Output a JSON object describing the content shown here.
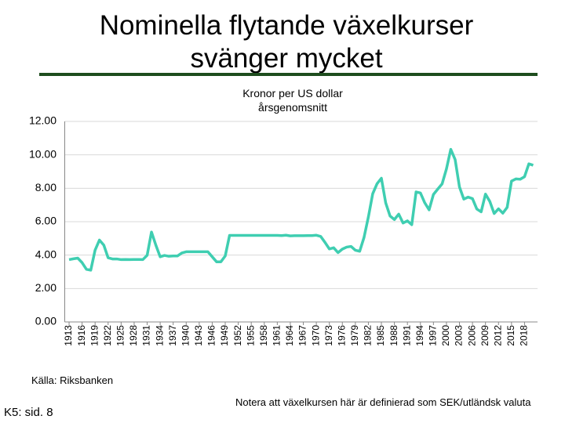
{
  "chart_data": {
    "type": "line",
    "title": [
      "Nominella flytande växelkurser",
      "svänger mycket"
    ],
    "subtitle": [
      "Kronor per US dollar",
      "årsgenomsnitt"
    ],
    "source": "Källa: Riksbanken",
    "reference": "K5: sid. 8",
    "note": "Notera att växelkursen här är definierad som SEK/utländsk valuta",
    "x": [
      1913,
      1914,
      1915,
      1916,
      1917,
      1918,
      1919,
      1920,
      1921,
      1922,
      1923,
      1924,
      1925,
      1926,
      1927,
      1928,
      1929,
      1930,
      1931,
      1932,
      1933,
      1934,
      1935,
      1936,
      1937,
      1938,
      1939,
      1940,
      1941,
      1942,
      1943,
      1944,
      1945,
      1946,
      1947,
      1948,
      1949,
      1950,
      1951,
      1952,
      1953,
      1954,
      1955,
      1956,
      1957,
      1958,
      1959,
      1960,
      1961,
      1962,
      1963,
      1964,
      1965,
      1966,
      1967,
      1968,
      1969,
      1970,
      1971,
      1972,
      1973,
      1974,
      1975,
      1976,
      1977,
      1978,
      1979,
      1980,
      1981,
      1982,
      1983,
      1984,
      1985,
      1986,
      1987,
      1988,
      1989,
      1990,
      1991,
      1992,
      1993,
      1994,
      1995,
      1996,
      1997,
      1998,
      1999,
      2000,
      2001,
      2002,
      2003,
      2004,
      2005,
      2006,
      2007,
      2008,
      2009,
      2010,
      2011,
      2012,
      2013,
      2014,
      2015,
      2016,
      2017,
      2018,
      2019,
      2020
    ],
    "series": [
      {
        "color": "#3fceb1",
        "values": [
          3.73,
          3.78,
          3.82,
          3.55,
          3.15,
          3.1,
          4.3,
          4.9,
          4.6,
          3.84,
          3.77,
          3.77,
          3.73,
          3.74,
          3.73,
          3.74,
          3.74,
          3.73,
          3.99,
          5.38,
          4.6,
          3.9,
          3.98,
          3.93,
          3.95,
          3.95,
          4.13,
          4.2,
          4.2,
          4.2,
          4.2,
          4.2,
          4.2,
          3.9,
          3.6,
          3.6,
          3.95,
          5.18,
          5.18,
          5.18,
          5.18,
          5.18,
          5.18,
          5.18,
          5.18,
          5.18,
          5.18,
          5.18,
          5.18,
          5.17,
          5.19,
          5.15,
          5.16,
          5.16,
          5.16,
          5.17,
          5.17,
          5.19,
          5.12,
          4.76,
          4.37,
          4.44,
          4.15,
          4.36,
          4.48,
          4.52,
          4.29,
          4.23,
          5.06,
          6.28,
          7.67,
          8.27,
          8.6,
          7.12,
          6.34,
          6.13,
          6.45,
          5.92,
          6.05,
          5.82,
          7.78,
          7.72,
          7.13,
          6.71,
          7.63,
          7.95,
          8.26,
          9.16,
          10.33,
          9.72,
          8.08,
          7.35,
          7.47,
          7.38,
          6.76,
          6.59,
          7.65,
          7.21,
          6.49,
          6.77,
          6.51,
          6.86,
          8.43,
          8.56,
          8.54,
          8.69,
          9.46,
          9.38
        ]
      }
    ],
    "xlim": [
      1912,
      2021
    ],
    "xticks": [
      1913,
      1916,
      1919,
      1922,
      1925,
      1928,
      1931,
      1934,
      1937,
      1940,
      1943,
      1946,
      1949,
      1952,
      1955,
      1958,
      1961,
      1964,
      1967,
      1970,
      1973,
      1976,
      1979,
      1982,
      1985,
      1988,
      1991,
      1994,
      1997,
      2000,
      2003,
      2006,
      2009,
      2012,
      2015,
      2018
    ],
    "ylim": [
      0,
      12
    ],
    "yticks": [
      {
        "value": 0,
        "label": "0.00"
      },
      {
        "value": 2,
        "label": "2.00"
      },
      {
        "value": 4,
        "label": "4.00"
      },
      {
        "value": 6,
        "label": "6.00"
      },
      {
        "value": 8,
        "label": "8.00"
      },
      {
        "value": 10,
        "label": "10.00"
      },
      {
        "value": 12,
        "label": "12.00"
      }
    ],
    "grid": true
  }
}
